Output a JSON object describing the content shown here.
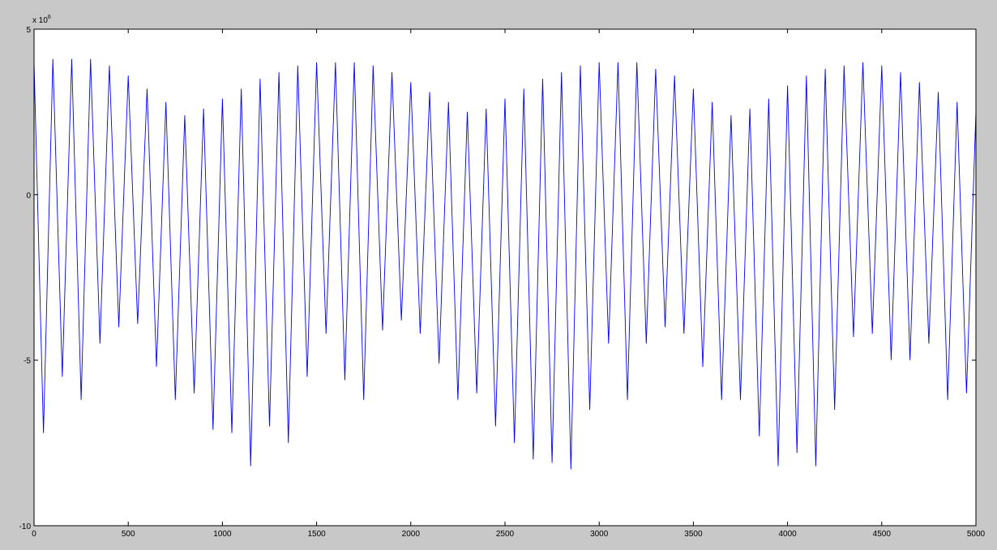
{
  "chart_data": {
    "type": "line",
    "y_exponent_label": {
      "base": "x 10",
      "exponent": "6"
    },
    "xlim": [
      0,
      5000
    ],
    "ylim": [
      -10,
      5
    ],
    "xticks": [
      0,
      500,
      1000,
      1500,
      2000,
      2500,
      3000,
      3500,
      4000,
      4500,
      5000
    ],
    "yticks": [
      -10,
      -5,
      0,
      5
    ],
    "grid": false,
    "x": [
      0,
      50,
      100,
      150,
      200,
      250,
      300,
      350,
      400,
      450,
      500,
      550,
      600,
      650,
      700,
      750,
      800,
      850,
      900,
      950,
      1000,
      1050,
      1100,
      1150,
      1200,
      1250,
      1300,
      1350,
      1400,
      1450,
      1500,
      1550,
      1600,
      1650,
      1700,
      1750,
      1800,
      1850,
      1900,
      1950,
      2000,
      2050,
      2100,
      2150,
      2200,
      2250,
      2300,
      2350,
      2400,
      2450,
      2500,
      2550,
      2600,
      2650,
      2700,
      2750,
      2800,
      2850,
      2900,
      2950,
      3000,
      3050,
      3100,
      3150,
      3200,
      3250,
      3300,
      3350,
      3400,
      3450,
      3500,
      3550,
      3600,
      3650,
      3700,
      3750,
      3800,
      3850,
      3900,
      3950,
      4000,
      4050,
      4100,
      4150,
      4200,
      4250,
      4300,
      4350,
      4400,
      4450,
      4500,
      4550,
      4600,
      4650,
      4700,
      4750,
      4800,
      4850,
      4900,
      4950,
      5000
    ],
    "series": [
      {
        "color": "#0000ff",
        "values": [
          4.0,
          -7.2,
          4.1,
          -5.5,
          4.1,
          -6.2,
          4.1,
          -4.5,
          3.9,
          -4.0,
          3.6,
          -3.9,
          3.2,
          -5.2,
          2.8,
          -6.2,
          2.4,
          -6.0,
          2.6,
          -7.1,
          2.9,
          -7.2,
          3.2,
          -8.2,
          3.5,
          -7.0,
          3.7,
          -7.5,
          3.9,
          -5.5,
          4.0,
          -4.2,
          4.0,
          -5.6,
          4.0,
          -6.2,
          3.9,
          -4.1,
          3.7,
          -3.8,
          3.4,
          -4.2,
          3.1,
          -5.1,
          2.8,
          -6.2,
          2.5,
          -6.0,
          2.6,
          -7.0,
          2.9,
          -7.5,
          3.2,
          -8.0,
          3.5,
          -8.1,
          3.7,
          -8.3,
          3.9,
          -6.5,
          4.0,
          -4.5,
          4.0,
          -6.2,
          4.0,
          -4.5,
          3.8,
          -4.0,
          3.6,
          -4.2,
          3.2,
          -5.2,
          2.8,
          -6.2,
          2.4,
          -6.2,
          2.6,
          -7.3,
          2.9,
          -8.2,
          3.3,
          -7.8,
          3.6,
          -8.2,
          3.8,
          -6.5,
          3.9,
          -4.3,
          4.0,
          -4.2,
          3.9,
          -5.0,
          3.7,
          -5.0,
          3.4,
          -4.5,
          3.1,
          -6.2,
          2.8,
          -6.0,
          2.5
        ]
      }
    ]
  }
}
